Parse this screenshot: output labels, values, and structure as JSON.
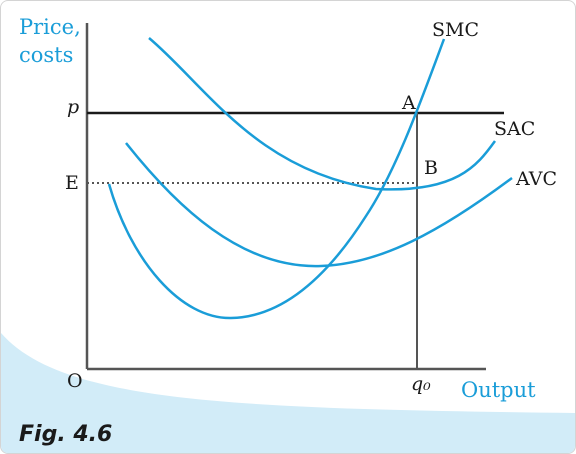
{
  "axis": {
    "y_title_line1": "Price,",
    "y_title_line2": "costs",
    "x_title": "Output",
    "origin": "O"
  },
  "levels": {
    "price": "p",
    "E": "E",
    "output_q": "q₀"
  },
  "points": {
    "A": "A",
    "B": "B"
  },
  "curves": {
    "smc": "SMC",
    "sac": "SAC",
    "avc": "AVC"
  },
  "caption": "Fig. 4.6",
  "colors": {
    "curve": "#1a9dd8",
    "axis_title": "#1a9dd8",
    "line": "#1a1a1a",
    "corner_fill": "#d2ecf8"
  }
}
